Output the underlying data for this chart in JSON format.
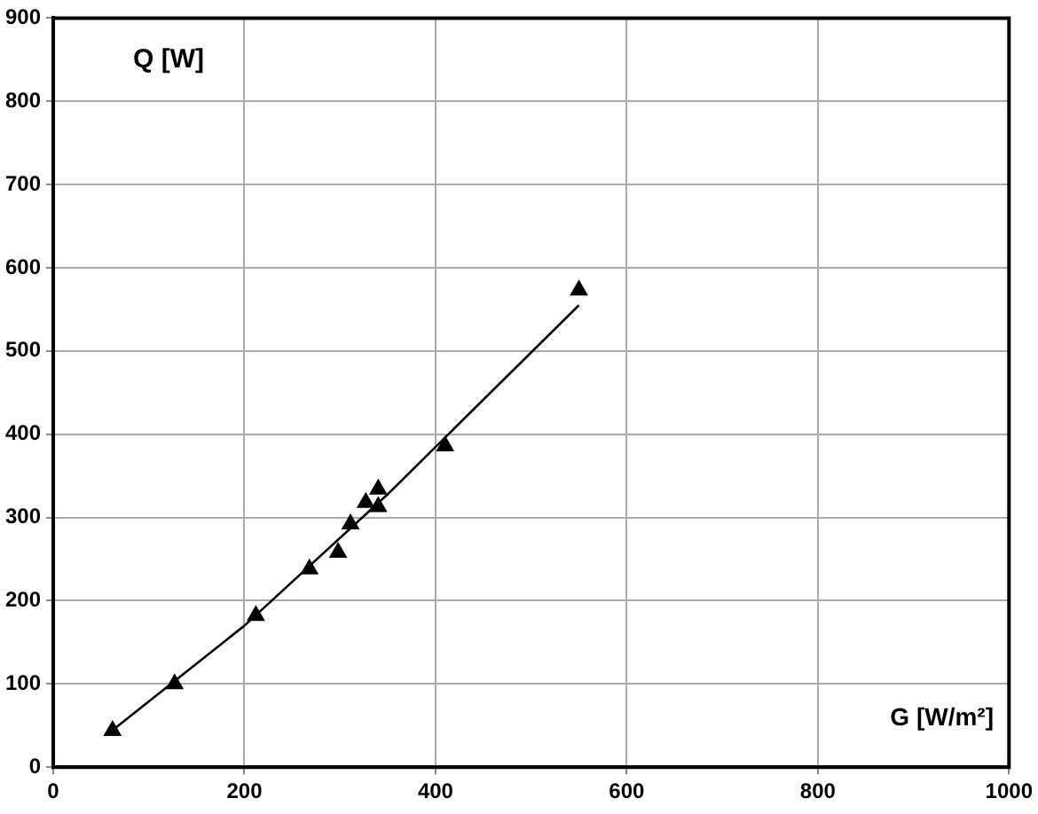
{
  "chart_data": {
    "type": "scatter",
    "xlabel": "G [W/m²]",
    "ylabel": "Q [W]",
    "xlim": [
      0,
      1000
    ],
    "xticks": [
      0,
      200,
      400,
      600,
      800,
      1000
    ],
    "ylim": [
      0,
      900
    ],
    "yticks": [
      0,
      100,
      200,
      300,
      400,
      500,
      600,
      700,
      800,
      900
    ],
    "grid": true,
    "legend": false,
    "marker": "triangle",
    "series": [
      {
        "color": "#000000",
        "x": [
          62,
          127,
          212,
          268,
          298,
          311,
          327,
          340,
          340,
          410,
          550
        ],
        "values": [
          44,
          100,
          182,
          238,
          258,
          292,
          318,
          334,
          313,
          386,
          573
        ]
      },
      {
        "type": "line",
        "color": "#000000",
        "marker": "none",
        "x": [
          55,
          200,
          350,
          550
        ],
        "values": [
          38,
          170,
          328,
          555
        ]
      }
    ]
  }
}
